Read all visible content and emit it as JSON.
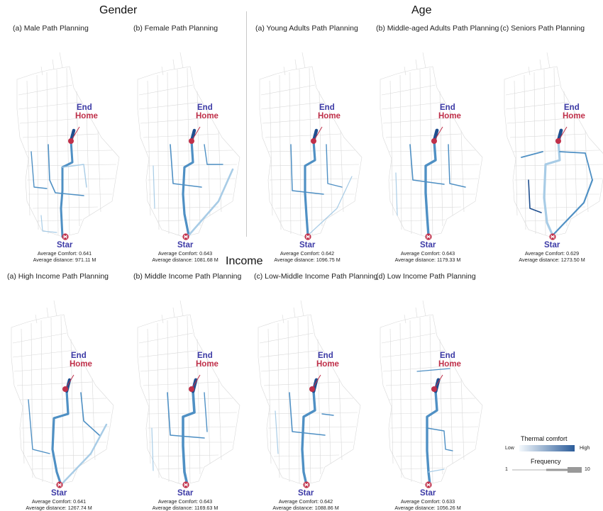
{
  "sections": {
    "gender": "Gender",
    "age": "Age",
    "income": "Income"
  },
  "labels": {
    "end": "End",
    "home": "Home",
    "start": "Star",
    "avg_comfort_prefix": "Average Comfort:",
    "avg_distance_prefix": "Average distance:"
  },
  "panels": [
    {
      "id": "male",
      "title": "(a) Male Path Planning",
      "comfort": "0.641",
      "distance": "971.11 M"
    },
    {
      "id": "female",
      "title": "(b) Female Path Planning",
      "comfort": "0.643",
      "distance": "1081.68 M"
    },
    {
      "id": "young",
      "title": "(a) Young Adults Path Planning",
      "comfort": "0.642",
      "distance": "1096.75 M"
    },
    {
      "id": "middle-aged",
      "title": "(b) Middle-aged Adults Path Planning",
      "comfort": "0.643",
      "distance": "1179.33 M"
    },
    {
      "id": "seniors",
      "title": "(c) Seniors Path Planning",
      "comfort": "0.629",
      "distance": "1273.50 M"
    },
    {
      "id": "high-income",
      "title": "(a) High Income Path Planning",
      "comfort": "0.641",
      "distance": "1267.74 M"
    },
    {
      "id": "middle-income",
      "title": "(b) Middle Income Path Planning",
      "comfort": "0.643",
      "distance": "1169.63 M"
    },
    {
      "id": "low-middle-income",
      "title": "(c) Low-Middle Income Path Planning",
      "comfort": "0.642",
      "distance": "1088.86 M"
    },
    {
      "id": "low-income",
      "title": "(d) Low Income Path Planning",
      "comfort": "0.633",
      "distance": "1056.26 M"
    }
  ],
  "legend": {
    "title": "Thermal comfort",
    "low": "Low",
    "high": "High",
    "frequency_title": "Frequency",
    "freq_min": "1",
    "freq_max": "10"
  },
  "colors": {
    "grid": "#d8d8d8",
    "route_light": "#a8cce6",
    "route_mid": "#4f90c4",
    "route_dark": "#1f4f8f",
    "marker": "#c0304a",
    "label_blue": "#3c3aa6"
  }
}
